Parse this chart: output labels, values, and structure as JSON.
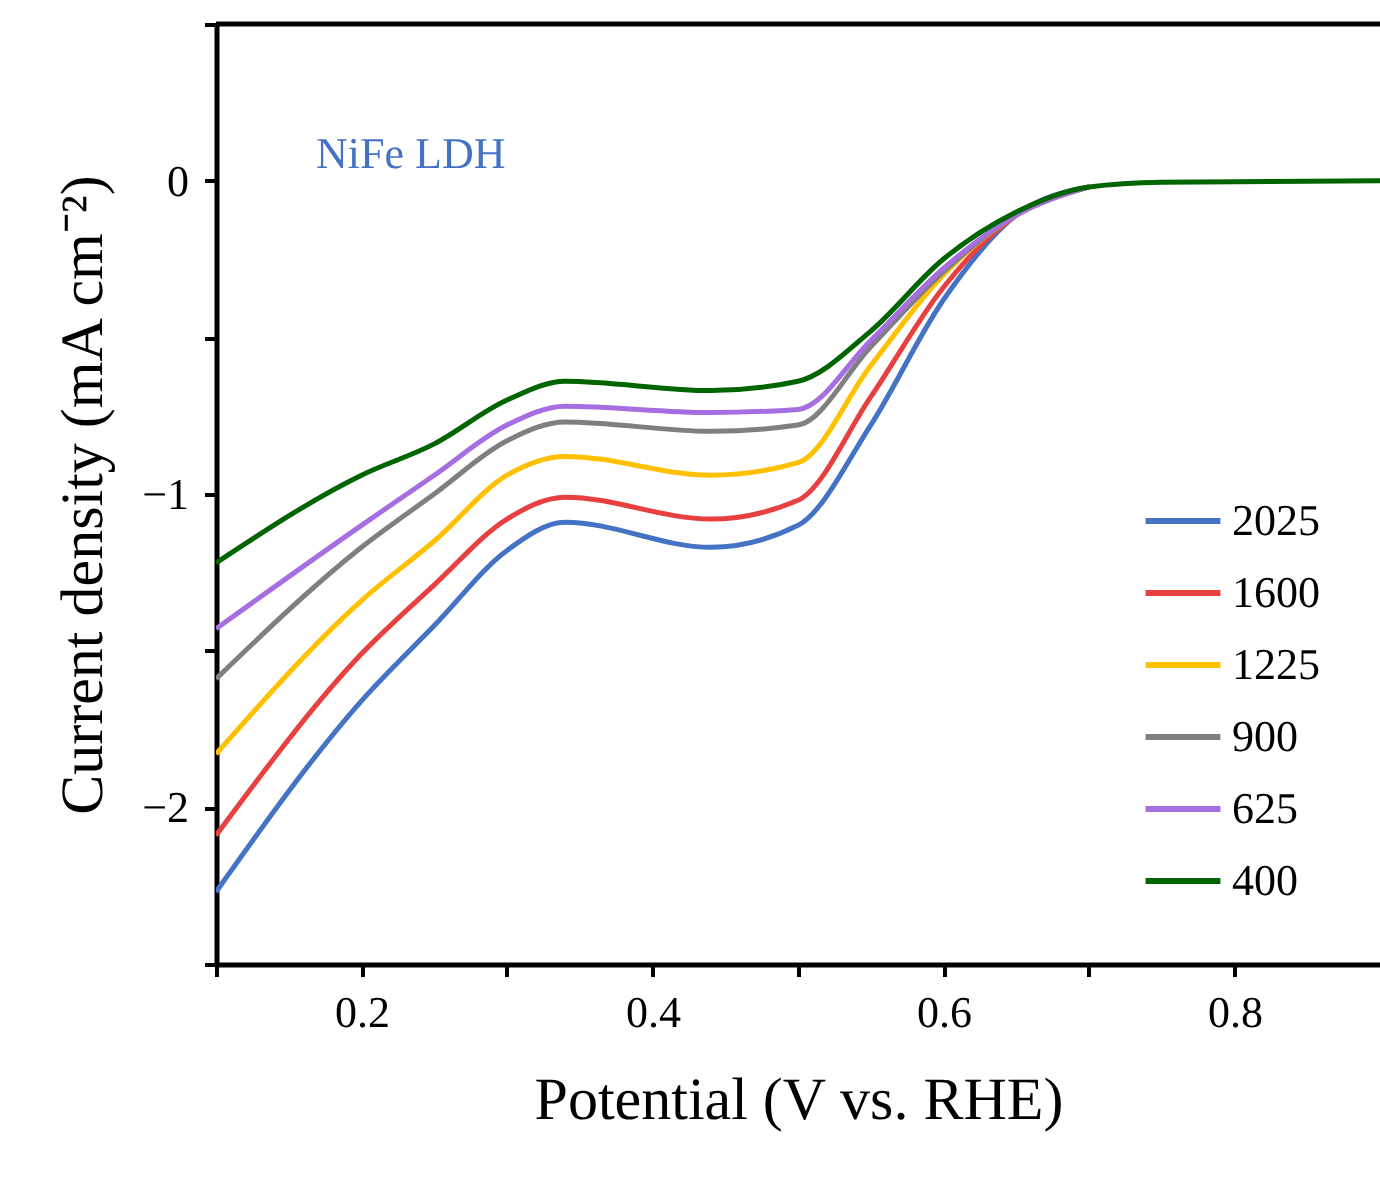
{
  "chart_data": {
    "type": "line",
    "xlabel": "Potential (V vs. RHE)",
    "ylabel": "Current density (mA cm⁻²)",
    "annotations": [
      "NiFe LDH"
    ],
    "x": [
      0.1,
      0.2,
      0.25,
      0.3,
      0.34,
      0.44,
      0.5,
      0.55,
      0.6,
      0.65,
      0.7,
      0.75,
      0.9
    ],
    "series": [
      {
        "name": "2025",
        "color": "#4472c4",
        "values": [
          -2.27,
          -1.66,
          -1.42,
          -1.18,
          -1.09,
          -1.17,
          -1.1,
          -0.78,
          -0.38,
          -0.11,
          -0.02,
          null,
          null
        ]
      },
      {
        "name": "1600",
        "color": "#e84040",
        "values": [
          -2.09,
          -1.51,
          -1.29,
          -1.08,
          -1.01,
          -1.08,
          -1.02,
          -0.69,
          -0.34,
          -0.11,
          -0.02,
          null,
          null
        ]
      },
      {
        "name": "1225",
        "color": "#ffc000",
        "values": [
          -1.83,
          -1.34,
          -1.15,
          -0.94,
          -0.88,
          -0.94,
          -0.9,
          -0.59,
          -0.3,
          -0.11,
          -0.02,
          null,
          null
        ]
      },
      {
        "name": "900",
        "color": "#7f7f7f",
        "values": [
          -1.59,
          -1.17,
          -1.0,
          -0.83,
          -0.77,
          -0.8,
          -0.78,
          -0.53,
          -0.29,
          -0.11,
          -0.02,
          null,
          null
        ]
      },
      {
        "name": "625",
        "color": "#a66ee0",
        "values": [
          -1.43,
          -1.1,
          -0.94,
          -0.78,
          -0.72,
          -0.74,
          -0.73,
          -0.51,
          -0.28,
          -0.11,
          -0.02,
          null,
          null
        ]
      },
      {
        "name": "400",
        "color": "#006400",
        "values": [
          -1.22,
          -0.94,
          -0.84,
          -0.7,
          -0.64,
          -0.67,
          -0.64,
          -0.48,
          -0.25,
          -0.1,
          -0.02,
          -0.005,
          0
        ]
      }
    ],
    "xlim": [
      0.1,
      0.9
    ],
    "ylim": [
      -2.5,
      0.5
    ],
    "xticks": [
      {
        "value": 0.1,
        "label": null
      },
      0.2,
      {
        "value": 0.3,
        "label": null
      },
      0.4,
      {
        "value": 0.5,
        "label": null
      },
      0.6,
      {
        "value": 0.7,
        "label": null
      },
      0.8
    ],
    "yticks": [
      {
        "value": -2.5,
        "label": null
      },
      -2,
      {
        "value": -1.5,
        "label": null
      },
      -1,
      {
        "value": -0.5,
        "label": null
      },
      0,
      {
        "value": 0.5,
        "label": null
      }
    ],
    "grid": false,
    "legend": "bottom right",
    "marker": "none",
    "line_style": "solid"
  }
}
